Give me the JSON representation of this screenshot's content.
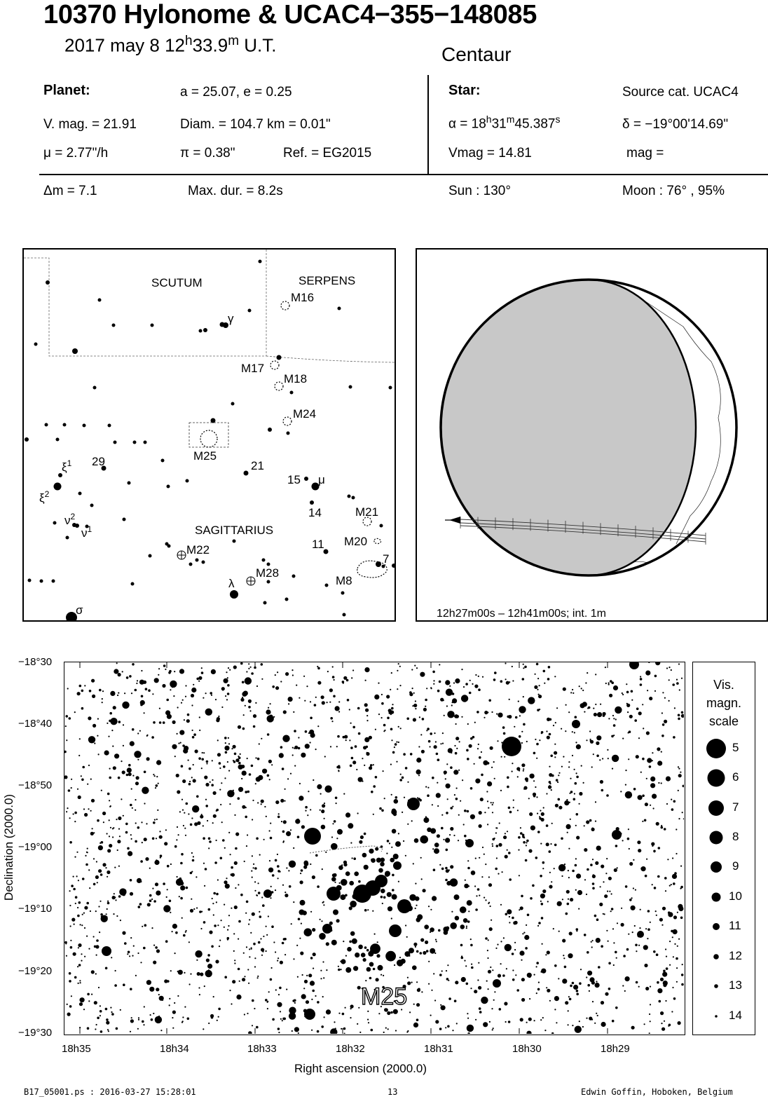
{
  "title": "10370 Hylonome  &  UCAC4−355−148085",
  "datetime": {
    "date": "2017 may  8  12",
    "h": "h",
    "min": "33.9",
    "m": "m",
    "ut": " U.T."
  },
  "constellation": "Centaur",
  "planet": {
    "heading": "Planet:",
    "orbit": "a = 25.07, e = 0.25",
    "vmag": "V. mag. = 21.91",
    "diam": "Diam. = 104.7 km = 0.01\"",
    "mu": "μ =  2.77\"/h",
    "pi": "π =  0.38\"",
    "ref": "Ref. = EG2015"
  },
  "star": {
    "heading": "Star:",
    "source": "Source cat.  UCAC4",
    "alpha_prefix": "α = 18",
    "alpha_h": "h",
    "alpha_min": "31",
    "alpha_m": "m",
    "alpha_sec": "45.387",
    "alpha_s": "s",
    "delta": "δ = −19°00'14.69\"",
    "vmag": "Vmag = 14.81",
    "mag": "mag ="
  },
  "event": {
    "dm": "Δm = 7.1",
    "maxdur": "Max. dur. = 8.2s",
    "sun": "Sun : 130°",
    "moon": "Moon :  76° , 95%"
  },
  "finder": {
    "constellations": [
      "SCUTUM",
      "SERPENS",
      "SAGITTARIUS"
    ],
    "objects": [
      "M16",
      "M17",
      "M18",
      "M24",
      "M25",
      "M21",
      "M20",
      "M8",
      "M22",
      "M28"
    ],
    "star_labels": [
      "γ",
      "ξ",
      "1",
      "ξ",
      "2",
      "ν",
      "2",
      "ν",
      "1",
      "29",
      "21",
      "15",
      "μ",
      "14",
      "11",
      "7",
      "λ",
      "σ"
    ]
  },
  "globe": {
    "caption": "12h27m00s – 12h41m00s; int.  1m"
  },
  "starchart": {
    "cluster_label": "M25",
    "y_ticks": [
      "−18°30",
      "−18°40",
      "−18°50",
      "−19°00",
      "−19°10",
      "−19°20",
      "−19°30"
    ],
    "x_ticks": [
      "18h35",
      "18h34",
      "18h33",
      "18h32",
      "18h31",
      "18h30",
      "18h29"
    ],
    "xlabel": "Right ascension (2000.0)",
    "ylabel": "Declination (2000.0)"
  },
  "legend": {
    "title_lines": [
      "Vis.",
      "magn.",
      "scale"
    ],
    "mags": [
      "5",
      "6",
      "7",
      "8",
      "9",
      "10",
      "11",
      "12",
      "13",
      "14"
    ]
  },
  "footer": {
    "file": "B17_05001.ps : 2016-03-27 15:28:01",
    "page": "13",
    "author": "Edwin Goffin, Hoboken, Belgium"
  }
}
